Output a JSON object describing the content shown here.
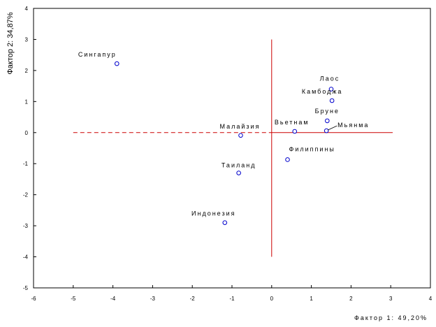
{
  "chart_data": {
    "type": "scatter",
    "title": "",
    "xlabel": "Фактор 1: 49,20%",
    "ylabel": "Фактор 2: 34,87%",
    "xlim": [
      -6,
      4
    ],
    "ylim": [
      -5,
      4
    ],
    "x_ticks": [
      "-6",
      "-5",
      "-4",
      "-3",
      "-2",
      "-1",
      "0",
      "1",
      "2",
      "3",
      "4"
    ],
    "y_ticks": [
      "4",
      "3",
      "2",
      "1",
      "0",
      "-1",
      "-2",
      "-3",
      "-4",
      "-5"
    ],
    "grid": false,
    "marker_color": "#0000cc",
    "line_color": "#cc0000",
    "points": [
      {
        "label": "Сингапур",
        "x": -3.9,
        "y": 2.22
      },
      {
        "label": "Лаос",
        "x": 1.5,
        "y": 1.4
      },
      {
        "label": "Камбоджа",
        "x": 1.52,
        "y": 1.03
      },
      {
        "label": "Бруне",
        "x": 1.4,
        "y": 0.38
      },
      {
        "label": "Мьянма",
        "x": 1.38,
        "y": 0.06
      },
      {
        "label": "Вьетнам",
        "x": 0.58,
        "y": 0.04
      },
      {
        "label": "Малайзия",
        "x": -0.78,
        "y": -0.09
      },
      {
        "label": "Филиппины",
        "x": 0.4,
        "y": -0.87
      },
      {
        "label": "Таиланд",
        "x": -0.83,
        "y": -1.3
      },
      {
        "label": "Индонезия",
        "x": -1.18,
        "y": -2.9
      }
    ],
    "reference_lines": [
      {
        "orientation": "vertical",
        "x": 0,
        "y_from": -4,
        "y_to": 3,
        "style": "solid"
      },
      {
        "orientation": "horizontal",
        "y": 0,
        "x_from": 0,
        "x_to": 3.05,
        "style": "solid"
      },
      {
        "orientation": "horizontal",
        "y": 0,
        "x_from": -5,
        "x_to": 0,
        "style": "dashed"
      }
    ]
  }
}
